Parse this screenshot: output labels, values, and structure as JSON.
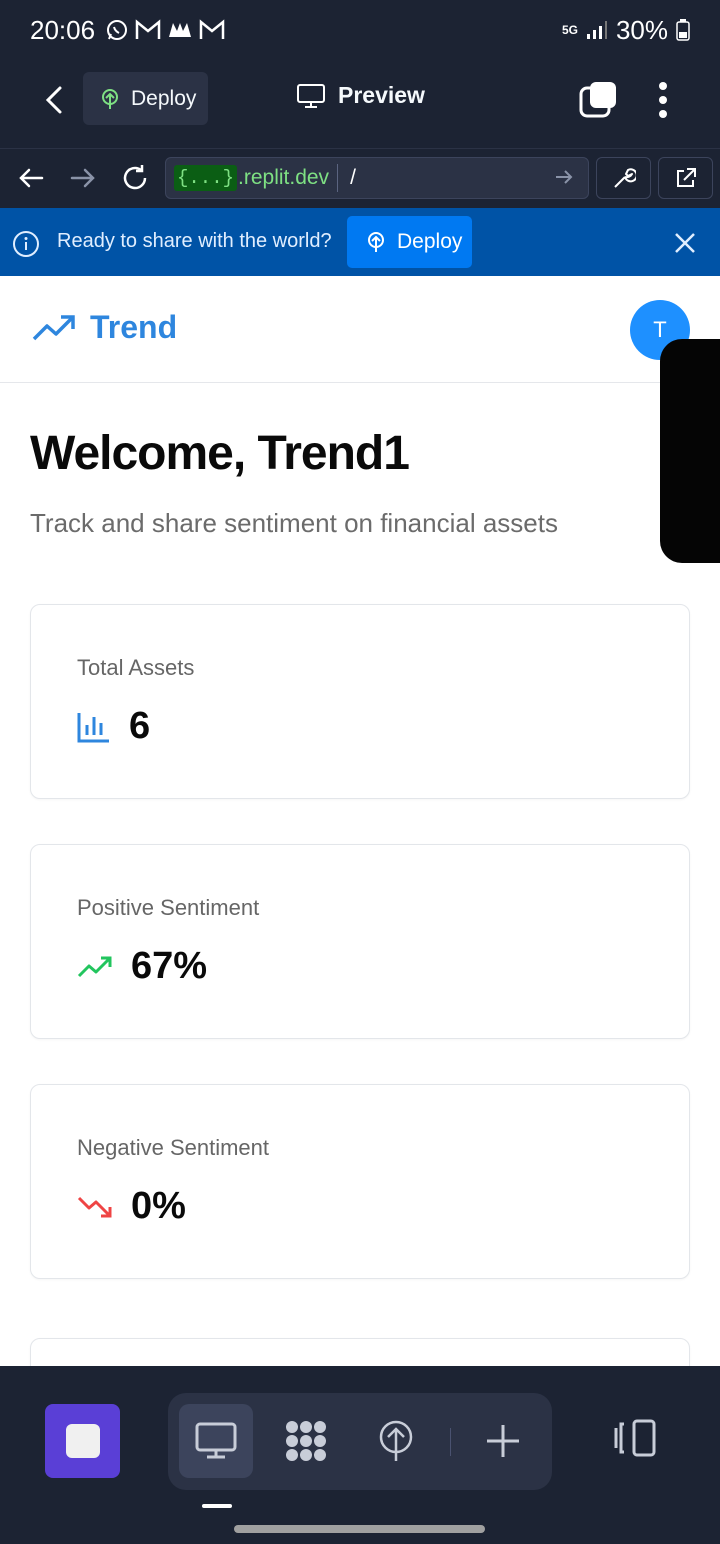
{
  "status_bar": {
    "time": "20:06",
    "network": "5G",
    "battery": "30%"
  },
  "app_bar": {
    "deploy_label": "Deploy",
    "title": "Preview"
  },
  "url_bar": {
    "host_badge": "{...}",
    "domain": ".replit.dev",
    "path": "/"
  },
  "banner": {
    "text": "Ready to share with the world?",
    "deploy_label": "Deploy"
  },
  "site": {
    "logo_name": "Trend",
    "avatar_initial": "T",
    "welcome": "Welcome, Trend1",
    "subtitle": "Track and share sentiment on financial assets"
  },
  "cards": [
    {
      "label": "Total Assets",
      "value": "6",
      "icon": "bar-chart-icon",
      "color": "#2e86de"
    },
    {
      "label": "Positive Sentiment",
      "value": "67%",
      "icon": "trending-up-icon",
      "color": "#22c55e"
    },
    {
      "label": "Negative Sentiment",
      "value": "0%",
      "icon": "trending-down-icon",
      "color": "#ef4444"
    }
  ],
  "colors": {
    "app_bg": "#1c2333",
    "accent": "#2e86de",
    "banner": "#0053a6",
    "stop_button": "#5a3fd6"
  }
}
